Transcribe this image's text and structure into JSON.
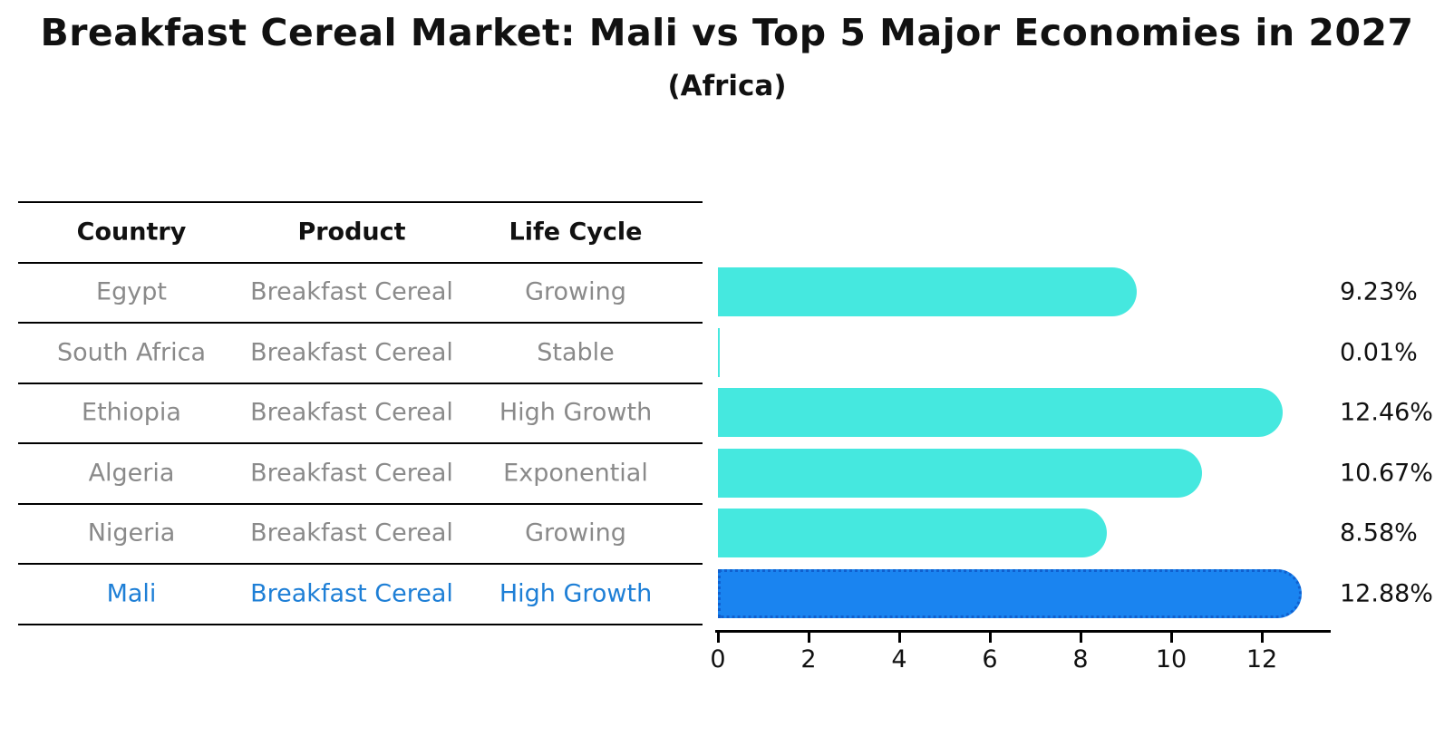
{
  "title": "Breakfast Cereal Market: Mali vs Top 5 Major Economies in 2027",
  "subtitle": "(Africa)",
  "table": {
    "headers": [
      "Country",
      "Product",
      "Life Cycle"
    ],
    "rows": [
      {
        "country": "Egypt",
        "product": "Breakfast Cereal",
        "life_cycle": "Growing",
        "highlight": false
      },
      {
        "country": "South Africa",
        "product": "Breakfast Cereal",
        "life_cycle": "Stable",
        "highlight": false
      },
      {
        "country": "Ethiopia",
        "product": "Breakfast Cereal",
        "life_cycle": "High Growth",
        "highlight": false
      },
      {
        "country": "Algeria",
        "product": "Breakfast Cereal",
        "life_cycle": "Exponential",
        "highlight": false
      },
      {
        "country": "Nigeria",
        "product": "Breakfast Cereal",
        "life_cycle": "Growing",
        "highlight": false
      },
      {
        "country": "Mali",
        "product": "Breakfast Cereal",
        "life_cycle": "High Growth",
        "highlight": true
      }
    ]
  },
  "chart_data": {
    "type": "bar",
    "orientation": "horizontal",
    "title": "Breakfast Cereal Market: Mali vs Top 5 Major Economies in 2027",
    "subtitle": "(Africa)",
    "categories": [
      "Egypt",
      "South Africa",
      "Ethiopia",
      "Algeria",
      "Nigeria",
      "Mali"
    ],
    "values": [
      9.23,
      0.01,
      12.46,
      10.67,
      8.58,
      12.88
    ],
    "value_labels": [
      "9.23%",
      "0.01%",
      "12.46%",
      "10.67%",
      "8.58%",
      "12.88%"
    ],
    "highlighted_category": "Mali",
    "xlabel": "",
    "ylabel": "",
    "xlim": [
      0,
      13.5
    ],
    "x_ticks": [
      0,
      2,
      4,
      6,
      8,
      10,
      12
    ],
    "grid": false,
    "legend": "none"
  },
  "colors": {
    "bar_default": "#45E8DF",
    "bar_highlight": "#1A84F0",
    "bar_highlight_border": "#1060CF",
    "row_text_muted": "#8A8A8A",
    "row_text_highlight": "#1E7FD6",
    "text": "#111111",
    "line": "#000000",
    "background": "#FFFFFF"
  }
}
